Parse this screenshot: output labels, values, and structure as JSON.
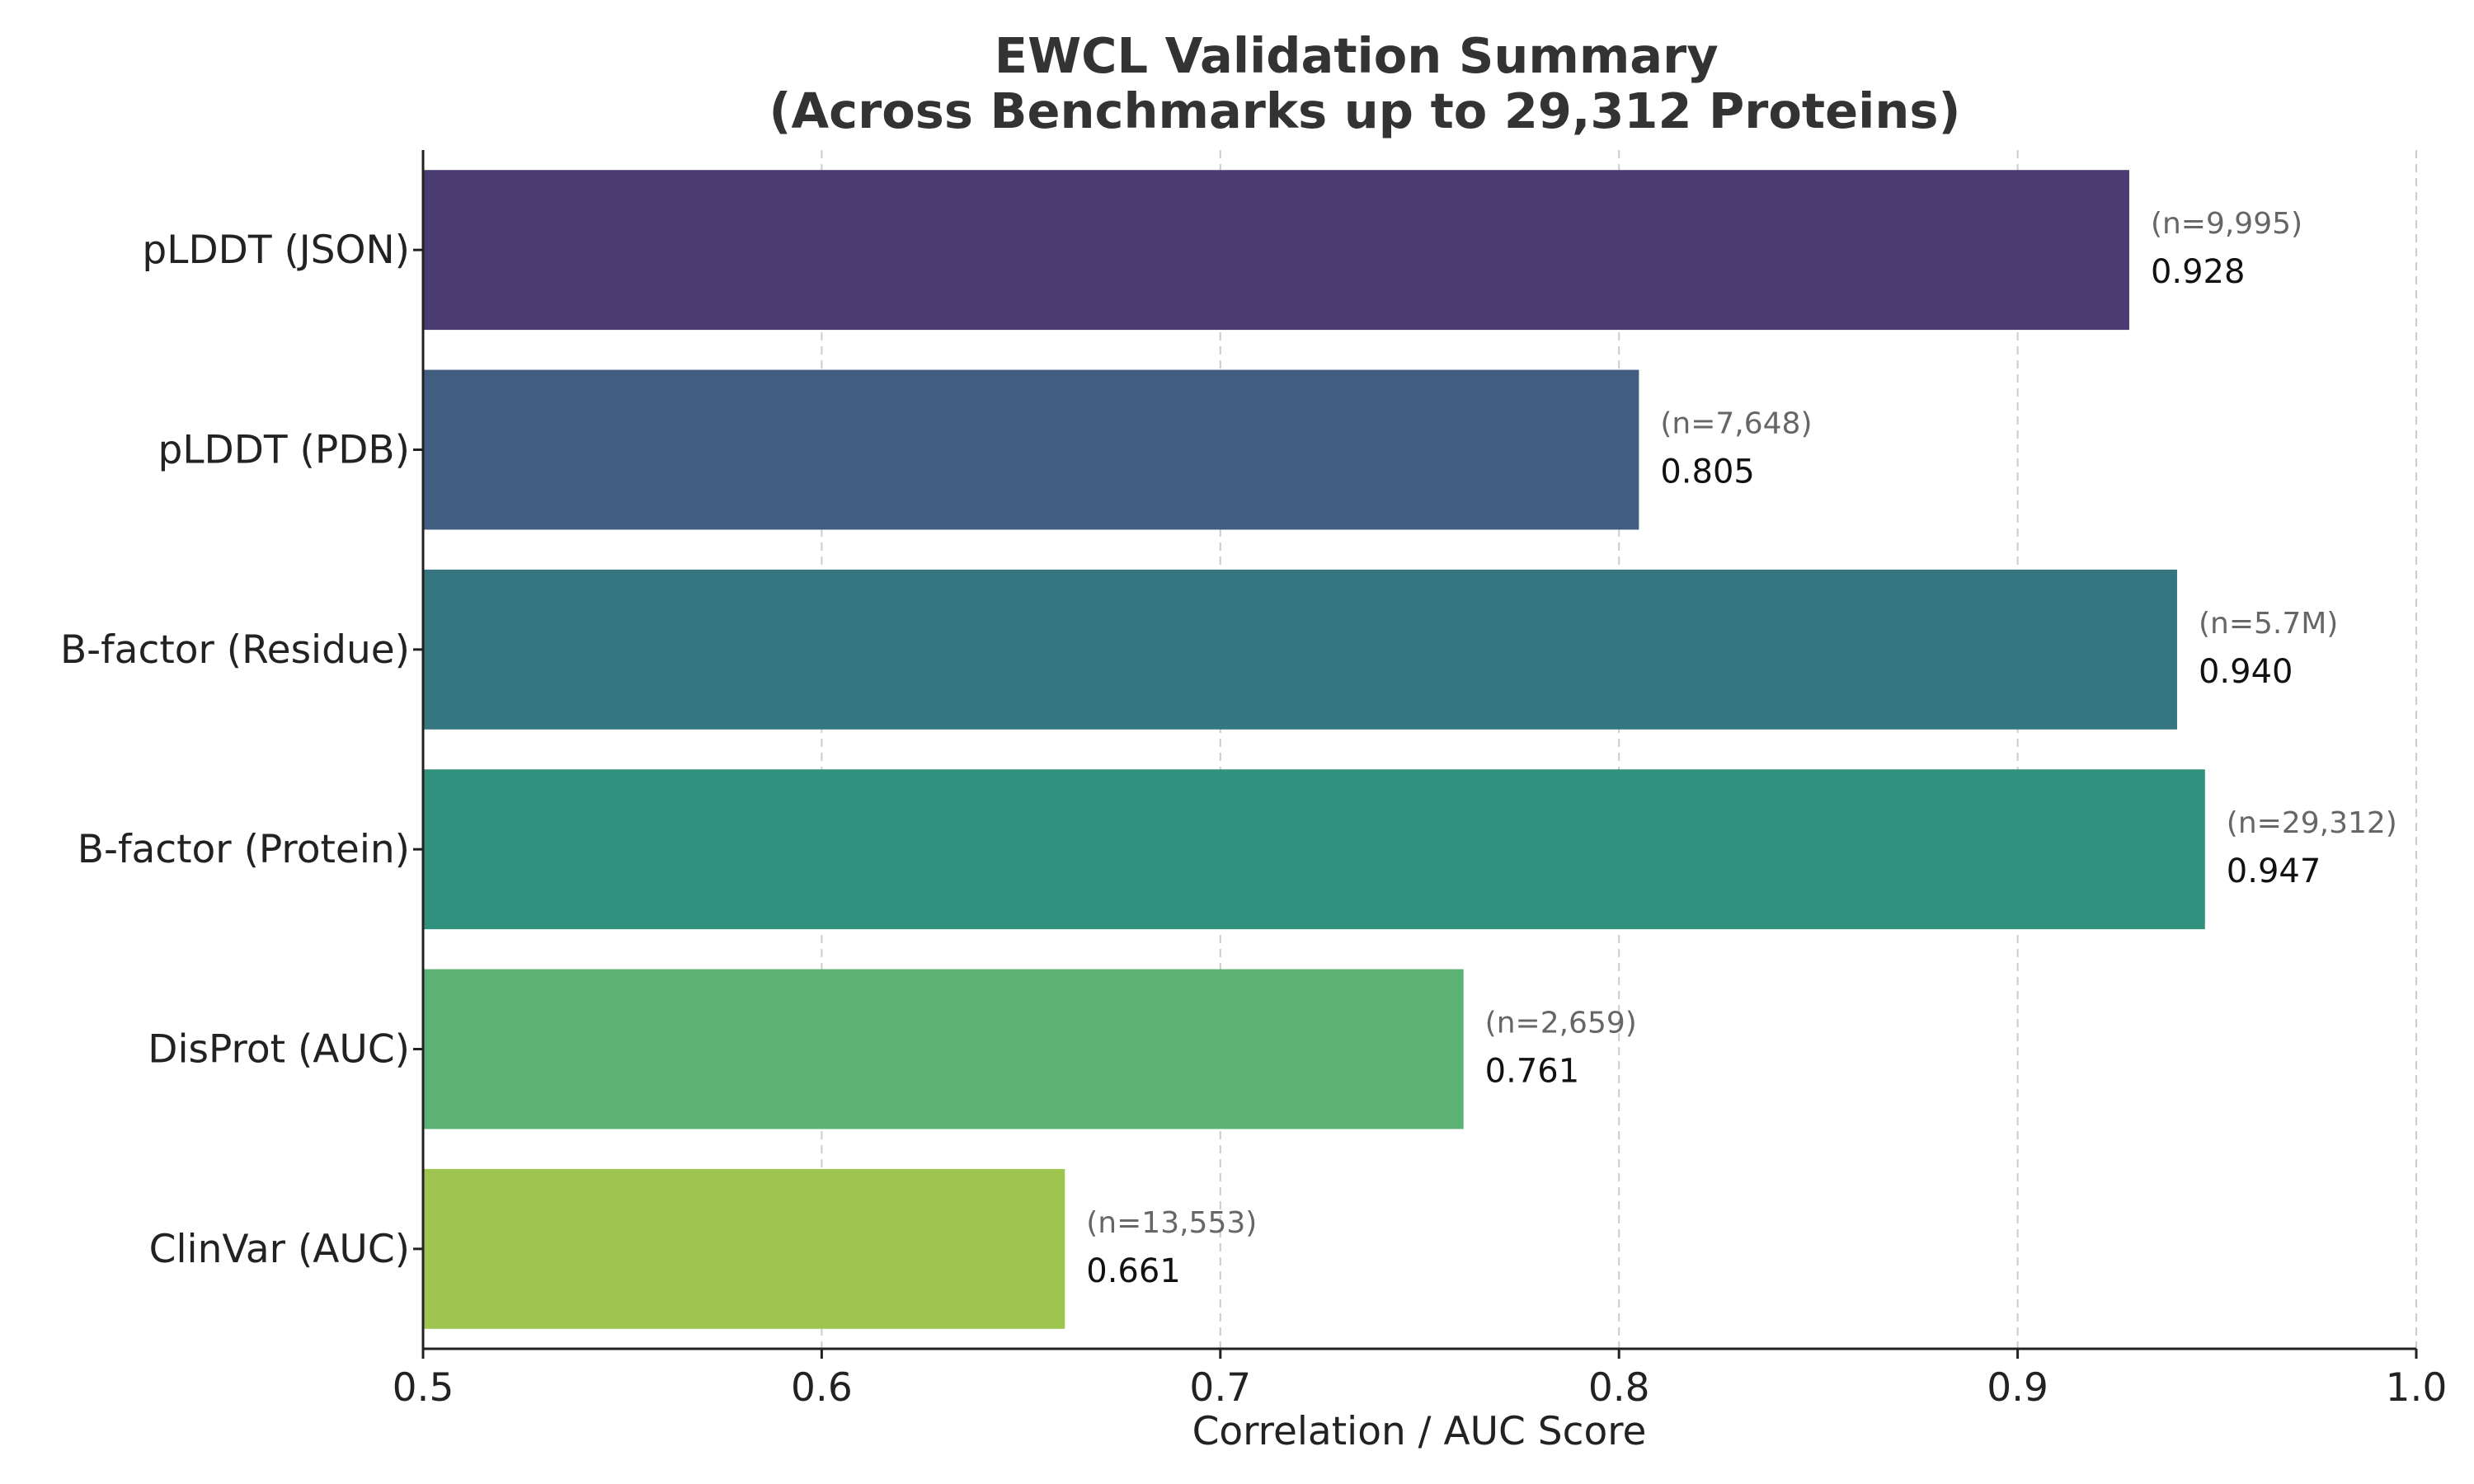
{
  "chart_data": {
    "type": "bar",
    "orientation": "horizontal",
    "title": "EWCL Validation Summary\n(Across Benchmarks up to 29,312 Proteins)",
    "xlabel": "Correlation / AUC Score",
    "ylabel": "",
    "xlim": [
      0.5,
      1.0
    ],
    "xticks": [
      "0.5",
      "0.6",
      "0.7",
      "0.8",
      "0.9",
      "1.0"
    ],
    "grid": "x-dashed",
    "legend": "none",
    "categories": [
      "pLDDT (JSON)",
      "pLDDT (PDB)",
      "B-factor (Residue)",
      "B-factor (Protein)",
      "DisProt (AUC)",
      "ClinVar (AUC)"
    ],
    "values": [
      0.928,
      0.805,
      0.94,
      0.947,
      0.761,
      0.661
    ],
    "value_labels": [
      "0.928",
      "0.805",
      "0.940",
      "0.947",
      "0.761",
      "0.661"
    ],
    "n_labels": [
      "(n=9,995)",
      "(n=7,648)",
      "(n=5.7M)",
      "(n=29,312)",
      "(n=2,659)",
      "(n=13,553)"
    ],
    "colors": [
      "#4a3b72",
      "#415e80",
      "#357681",
      "#31917f",
      "#5cb274",
      "#9dc550"
    ]
  }
}
